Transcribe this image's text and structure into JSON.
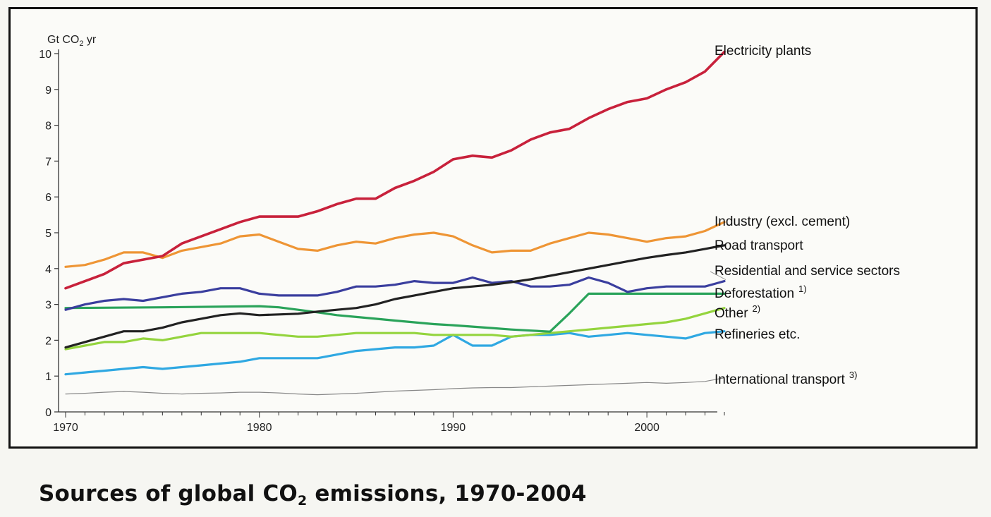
{
  "chart_data": {
    "type": "line",
    "title": "",
    "xlabel": "",
    "ylabel_main": "Gt CO",
    "ylabel_sub": "2",
    "ylabel_end": " yr",
    "xlim": [
      1970,
      2004
    ],
    "ylim": [
      0,
      10
    ],
    "x_ticks": [
      1970,
      1980,
      1990,
      2000
    ],
    "y_ticks": [
      0,
      1,
      2,
      3,
      4,
      5,
      6,
      7,
      8,
      9,
      10
    ],
    "grid": false,
    "legend": "right (labels at line ends)",
    "series": [
      {
        "name": "Electricity plants",
        "footnote": "",
        "color": "#c8213b",
        "points": [
          [
            1970,
            3.45
          ],
          [
            1971,
            3.65
          ],
          [
            1972,
            3.85
          ],
          [
            1973,
            4.15
          ],
          [
            1974,
            4.25
          ],
          [
            1975,
            4.35
          ],
          [
            1976,
            4.7
          ],
          [
            1977,
            4.9
          ],
          [
            1978,
            5.1
          ],
          [
            1979,
            5.3
          ],
          [
            1980,
            5.45
          ],
          [
            1981,
            5.45
          ],
          [
            1982,
            5.45
          ],
          [
            1983,
            5.6
          ],
          [
            1984,
            5.8
          ],
          [
            1985,
            5.95
          ],
          [
            1986,
            5.95
          ],
          [
            1987,
            6.25
          ],
          [
            1988,
            6.45
          ],
          [
            1989,
            6.7
          ],
          [
            1990,
            7.05
          ],
          [
            1991,
            7.15
          ],
          [
            1992,
            7.1
          ],
          [
            1993,
            7.3
          ],
          [
            1994,
            7.6
          ],
          [
            1995,
            7.8
          ],
          [
            1996,
            7.9
          ],
          [
            1997,
            8.2
          ],
          [
            1998,
            8.45
          ],
          [
            1999,
            8.65
          ],
          [
            2000,
            8.75
          ],
          [
            2001,
            9.0
          ],
          [
            2002,
            9.2
          ],
          [
            2003,
            9.5
          ],
          [
            2004,
            10.05
          ]
        ]
      },
      {
        "name": "Industry (excl. cement)",
        "footnote": "",
        "color": "#ee9535",
        "points": [
          [
            1970,
            4.05
          ],
          [
            1971,
            4.1
          ],
          [
            1972,
            4.25
          ],
          [
            1973,
            4.45
          ],
          [
            1974,
            4.45
          ],
          [
            1975,
            4.3
          ],
          [
            1976,
            4.5
          ],
          [
            1977,
            4.6
          ],
          [
            1978,
            4.7
          ],
          [
            1979,
            4.9
          ],
          [
            1980,
            4.95
          ],
          [
            1981,
            4.75
          ],
          [
            1982,
            4.55
          ],
          [
            1983,
            4.5
          ],
          [
            1984,
            4.65
          ],
          [
            1985,
            4.75
          ],
          [
            1986,
            4.7
          ],
          [
            1987,
            4.85
          ],
          [
            1988,
            4.95
          ],
          [
            1989,
            5.0
          ],
          [
            1990,
            4.9
          ],
          [
            1991,
            4.65
          ],
          [
            1992,
            4.45
          ],
          [
            1993,
            4.5
          ],
          [
            1994,
            4.5
          ],
          [
            1995,
            4.7
          ],
          [
            1996,
            4.85
          ],
          [
            1997,
            5.0
          ],
          [
            1998,
            4.95
          ],
          [
            1999,
            4.85
          ],
          [
            2000,
            4.75
          ],
          [
            2001,
            4.85
          ],
          [
            2002,
            4.9
          ],
          [
            2003,
            5.05
          ],
          [
            2004,
            5.3
          ]
        ]
      },
      {
        "name": "Road transport",
        "footnote": "",
        "color": "#222222",
        "points": [
          [
            1970,
            1.8
          ],
          [
            1971,
            1.95
          ],
          [
            1972,
            2.1
          ],
          [
            1973,
            2.25
          ],
          [
            1974,
            2.25
          ],
          [
            1975,
            2.35
          ],
          [
            1976,
            2.5
          ],
          [
            1977,
            2.6
          ],
          [
            1978,
            2.7
          ],
          [
            1979,
            2.75
          ],
          [
            1980,
            2.7
          ],
          [
            1981,
            2.72
          ],
          [
            1982,
            2.74
          ],
          [
            1983,
            2.8
          ],
          [
            1984,
            2.85
          ],
          [
            1985,
            2.9
          ],
          [
            1986,
            3.0
          ],
          [
            1987,
            3.15
          ],
          [
            1988,
            3.25
          ],
          [
            1989,
            3.35
          ],
          [
            1990,
            3.45
          ],
          [
            1991,
            3.5
          ],
          [
            1992,
            3.55
          ],
          [
            1993,
            3.62
          ],
          [
            1994,
            3.7
          ],
          [
            1995,
            3.8
          ],
          [
            1996,
            3.9
          ],
          [
            1997,
            4.0
          ],
          [
            1998,
            4.1
          ],
          [
            1999,
            4.2
          ],
          [
            2000,
            4.3
          ],
          [
            2001,
            4.38
          ],
          [
            2002,
            4.45
          ],
          [
            2003,
            4.55
          ],
          [
            2004,
            4.65
          ]
        ]
      },
      {
        "name": "Residential and service sectors",
        "footnote": "",
        "color": "#3a3e9e",
        "points": [
          [
            1970,
            2.85
          ],
          [
            1971,
            3.0
          ],
          [
            1972,
            3.1
          ],
          [
            1973,
            3.15
          ],
          [
            1974,
            3.1
          ],
          [
            1975,
            3.2
          ],
          [
            1976,
            3.3
          ],
          [
            1977,
            3.35
          ],
          [
            1978,
            3.45
          ],
          [
            1979,
            3.45
          ],
          [
            1980,
            3.3
          ],
          [
            1981,
            3.25
          ],
          [
            1982,
            3.25
          ],
          [
            1983,
            3.25
          ],
          [
            1984,
            3.35
          ],
          [
            1985,
            3.5
          ],
          [
            1986,
            3.5
          ],
          [
            1987,
            3.55
          ],
          [
            1988,
            3.65
          ],
          [
            1989,
            3.6
          ],
          [
            1990,
            3.6
          ],
          [
            1991,
            3.75
          ],
          [
            1992,
            3.6
          ],
          [
            1993,
            3.65
          ],
          [
            1994,
            3.5
          ],
          [
            1995,
            3.5
          ],
          [
            1996,
            3.55
          ],
          [
            1997,
            3.75
          ],
          [
            1998,
            3.6
          ],
          [
            1999,
            3.35
          ],
          [
            2000,
            3.45
          ],
          [
            2001,
            3.5
          ],
          [
            2002,
            3.5
          ],
          [
            2003,
            3.5
          ],
          [
            2004,
            3.65
          ]
        ]
      },
      {
        "name": "Deforestation",
        "footnote": "1)",
        "color": "#2aa35a",
        "points": [
          [
            1970,
            2.9
          ],
          [
            1975,
            2.92
          ],
          [
            1980,
            2.95
          ],
          [
            1981,
            2.92
          ],
          [
            1982,
            2.85
          ],
          [
            1983,
            2.78
          ],
          [
            1984,
            2.7
          ],
          [
            1985,
            2.65
          ],
          [
            1986,
            2.6
          ],
          [
            1987,
            2.55
          ],
          [
            1988,
            2.5
          ],
          [
            1989,
            2.45
          ],
          [
            1990,
            2.42
          ],
          [
            1991,
            2.38
          ],
          [
            1992,
            2.34
          ],
          [
            1993,
            2.3
          ],
          [
            1994,
            2.27
          ],
          [
            1995,
            2.24
          ],
          [
            1996,
            2.75
          ],
          [
            1997,
            3.3
          ],
          [
            2004,
            3.3
          ]
        ]
      },
      {
        "name": "Other",
        "footnote": "2)",
        "color": "#94d43e",
        "points": [
          [
            1970,
            1.75
          ],
          [
            1971,
            1.85
          ],
          [
            1972,
            1.95
          ],
          [
            1973,
            1.95
          ],
          [
            1974,
            2.05
          ],
          [
            1975,
            2.0
          ],
          [
            1976,
            2.1
          ],
          [
            1977,
            2.2
          ],
          [
            1978,
            2.2
          ],
          [
            1979,
            2.2
          ],
          [
            1980,
            2.2
          ],
          [
            1981,
            2.15
          ],
          [
            1982,
            2.1
          ],
          [
            1983,
            2.1
          ],
          [
            1984,
            2.15
          ],
          [
            1985,
            2.2
          ],
          [
            1986,
            2.2
          ],
          [
            1987,
            2.2
          ],
          [
            1988,
            2.2
          ],
          [
            1989,
            2.15
          ],
          [
            1990,
            2.15
          ],
          [
            1991,
            2.15
          ],
          [
            1992,
            2.15
          ],
          [
            1993,
            2.1
          ],
          [
            1994,
            2.15
          ],
          [
            1995,
            2.2
          ],
          [
            1996,
            2.25
          ],
          [
            1997,
            2.3
          ],
          [
            1998,
            2.35
          ],
          [
            1999,
            2.4
          ],
          [
            2000,
            2.45
          ],
          [
            2001,
            2.5
          ],
          [
            2002,
            2.6
          ],
          [
            2003,
            2.75
          ],
          [
            2004,
            2.9
          ]
        ]
      },
      {
        "name": "Refineries etc.",
        "footnote": "",
        "color": "#2fa8e2",
        "points": [
          [
            1970,
            1.05
          ],
          [
            1971,
            1.1
          ],
          [
            1972,
            1.15
          ],
          [
            1973,
            1.2
          ],
          [
            1974,
            1.25
          ],
          [
            1975,
            1.2
          ],
          [
            1976,
            1.25
          ],
          [
            1977,
            1.3
          ],
          [
            1978,
            1.35
          ],
          [
            1979,
            1.4
          ],
          [
            1980,
            1.5
          ],
          [
            1981,
            1.5
          ],
          [
            1982,
            1.5
          ],
          [
            1983,
            1.5
          ],
          [
            1984,
            1.6
          ],
          [
            1985,
            1.7
          ],
          [
            1986,
            1.75
          ],
          [
            1987,
            1.8
          ],
          [
            1988,
            1.8
          ],
          [
            1989,
            1.85
          ],
          [
            1990,
            2.15
          ],
          [
            1991,
            1.85
          ],
          [
            1992,
            1.85
          ],
          [
            1993,
            2.1
          ],
          [
            1994,
            2.15
          ],
          [
            1995,
            2.15
          ],
          [
            1996,
            2.2
          ],
          [
            1997,
            2.1
          ],
          [
            1998,
            2.15
          ],
          [
            1999,
            2.2
          ],
          [
            2000,
            2.15
          ],
          [
            2001,
            2.1
          ],
          [
            2002,
            2.05
          ],
          [
            2003,
            2.2
          ],
          [
            2004,
            2.25
          ]
        ]
      },
      {
        "name": "International transport",
        "footnote": "3)",
        "color": "#888888",
        "points": [
          [
            1970,
            0.5
          ],
          [
            1971,
            0.52
          ],
          [
            1972,
            0.55
          ],
          [
            1973,
            0.57
          ],
          [
            1974,
            0.55
          ],
          [
            1975,
            0.52
          ],
          [
            1976,
            0.5
          ],
          [
            1977,
            0.52
          ],
          [
            1978,
            0.53
          ],
          [
            1979,
            0.55
          ],
          [
            1980,
            0.55
          ],
          [
            1981,
            0.53
          ],
          [
            1982,
            0.5
          ],
          [
            1983,
            0.48
          ],
          [
            1984,
            0.5
          ],
          [
            1985,
            0.52
          ],
          [
            1986,
            0.55
          ],
          [
            1987,
            0.58
          ],
          [
            1988,
            0.6
          ],
          [
            1989,
            0.62
          ],
          [
            1990,
            0.65
          ],
          [
            1991,
            0.67
          ],
          [
            1992,
            0.68
          ],
          [
            1993,
            0.68
          ],
          [
            1994,
            0.7
          ],
          [
            1995,
            0.72
          ],
          [
            1996,
            0.74
          ],
          [
            1997,
            0.76
          ],
          [
            1998,
            0.78
          ],
          [
            1999,
            0.8
          ],
          [
            2000,
            0.82
          ],
          [
            2001,
            0.8
          ],
          [
            2002,
            0.82
          ],
          [
            2003,
            0.85
          ],
          [
            2004,
            0.95
          ]
        ]
      }
    ]
  },
  "caption": {
    "before": "Sources of global CO",
    "sub": "2",
    "after": " emissions, 1970-2004"
  }
}
